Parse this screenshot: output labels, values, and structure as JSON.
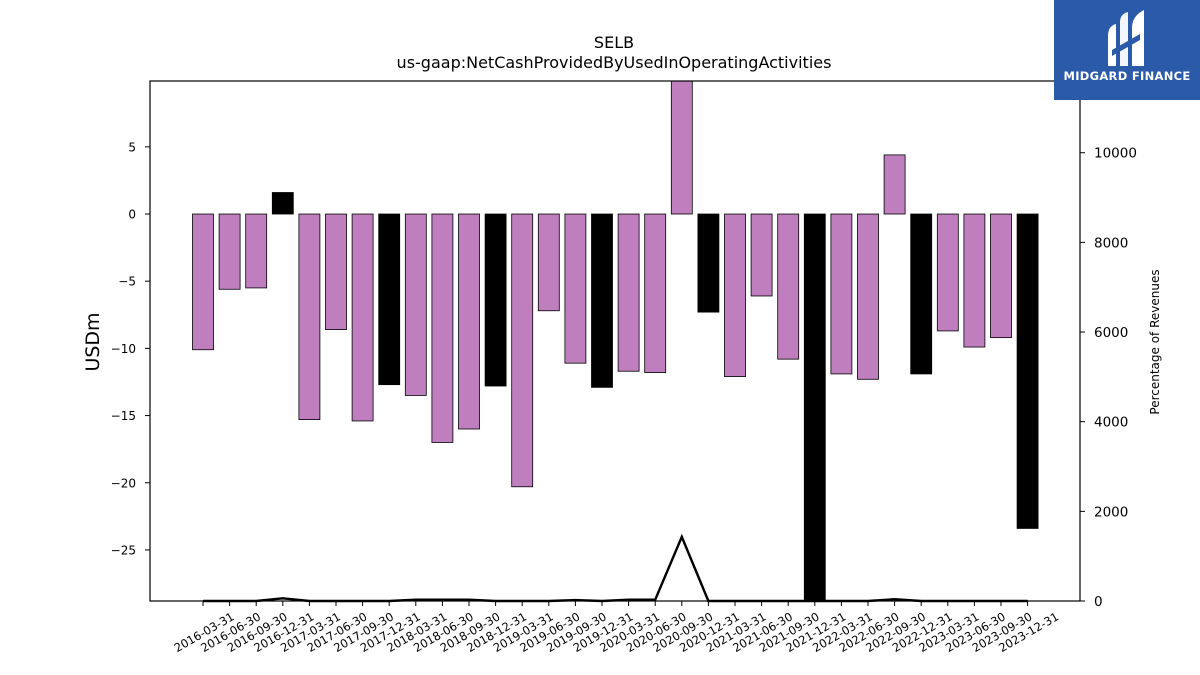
{
  "logo": {
    "text": "MIDGARD FINANCE"
  },
  "colors": {
    "positive_year_bar": "#bf7fbf",
    "year_end_bar": "#000000",
    "line": "#000000"
  },
  "chart_data": {
    "type": "bar",
    "title": "SELB",
    "subtitle": "us-gaap:NetCashProvidedByUsedInOperatingActivities",
    "ylabel": "USDm",
    "y2label": "Percentage of Revenues",
    "ylim": [
      -28.8,
      9.9
    ],
    "y2lim": [
      0,
      11600
    ],
    "yticks": [
      5,
      0,
      -5,
      -10,
      -15,
      -20,
      -25
    ],
    "y2ticks": [
      10000,
      8000,
      6000,
      4000,
      2000,
      0
    ],
    "grid": false,
    "categories": [
      "2016-03-31",
      "2016-06-30",
      "2016-09-30",
      "2016-12-31",
      "2017-03-31",
      "2017-06-30",
      "2017-09-30",
      "2017-12-31",
      "2018-03-31",
      "2018-06-30",
      "2018-09-30",
      "2018-12-31",
      "2019-03-31",
      "2019-06-30",
      "2019-09-30",
      "2019-12-31",
      "2020-03-31",
      "2020-06-30",
      "2020-09-30",
      "2020-12-31",
      "2021-03-31",
      "2021-06-30",
      "2021-09-30",
      "2021-12-31",
      "2022-03-31",
      "2022-06-30",
      "2022-09-30",
      "2022-12-31",
      "2023-03-31",
      "2023-06-30",
      "2023-09-30",
      "2023-12-31"
    ],
    "series": [
      {
        "values": [
          -10.1,
          -5.6,
          -5.5,
          1.6,
          -15.3,
          -8.6,
          -15.4,
          -12.7,
          -13.5,
          -17.0,
          -16.0,
          -12.8,
          -20.3,
          -7.2,
          -11.1,
          -12.9,
          -11.7,
          -11.8,
          9.9,
          -7.3,
          -12.1,
          -6.1,
          -10.8,
          -28.8,
          -11.9,
          -12.3,
          4.4,
          -11.9,
          -8.7,
          -9.9,
          -9.2,
          -23.4
        ],
        "kinds": [
          "q",
          "q",
          "q",
          "y",
          "q",
          "q",
          "q",
          "y",
          "q",
          "q",
          "q",
          "y",
          "q",
          "q",
          "q",
          "y",
          "q",
          "q",
          "q",
          "y",
          "q",
          "q",
          "q",
          "y",
          "q",
          "q",
          "q",
          "y",
          "q",
          "q",
          "q",
          "y"
        ]
      },
      {
        "type": "line",
        "axis": "right",
        "values": [
          0,
          0,
          0,
          60,
          0,
          0,
          0,
          0,
          30,
          30,
          30,
          0,
          0,
          0,
          20,
          0,
          30,
          30,
          1430,
          0,
          0,
          0,
          0,
          0,
          0,
          0,
          40,
          0,
          0,
          0,
          0,
          0
        ]
      }
    ]
  }
}
